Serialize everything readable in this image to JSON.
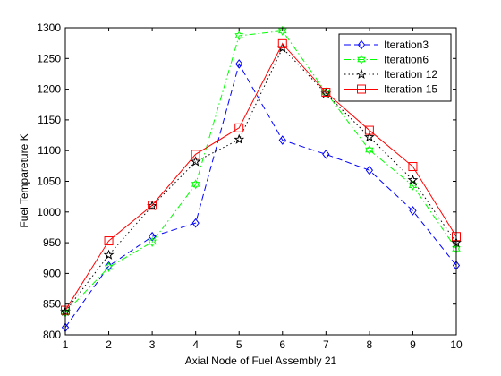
{
  "chart_data": {
    "type": "line",
    "title": "",
    "xlabel": "Axial Node of Fuel Assembly 21",
    "ylabel": "Fuel Tempareture K",
    "xlim": [
      1,
      10
    ],
    "ylim": [
      800,
      1300
    ],
    "x": [
      1,
      2,
      3,
      4,
      5,
      6,
      7,
      8,
      9,
      10
    ],
    "xticks": [
      "1",
      "2",
      "3",
      "4",
      "5",
      "6",
      "7",
      "8",
      "9",
      "10"
    ],
    "yticks": [
      "800",
      "850",
      "900",
      "950",
      "1000",
      "1050",
      "1100",
      "1150",
      "1200",
      "1250",
      "1300"
    ],
    "grid": false,
    "legend_position": "top-right",
    "series": [
      {
        "name": "Iteration3",
        "color": "#0000ff",
        "dash": "dashed",
        "marker": "diamond",
        "values": [
          812,
          912,
          960,
          982,
          1241,
          1117,
          1094,
          1068,
          1002,
          913
        ]
      },
      {
        "name": "Iteration6",
        "color": "#00ff00",
        "dash": "dashdot",
        "marker": "hexagram",
        "values": [
          836,
          910,
          951,
          1045,
          1287,
          1295,
          1195,
          1101,
          1043,
          940
        ]
      },
      {
        "name": "Iteration 12",
        "color": "#000000",
        "dash": "dotted",
        "marker": "pentagram",
        "values": [
          838,
          930,
          1010,
          1082,
          1118,
          1267,
          1193,
          1122,
          1052,
          950
        ]
      },
      {
        "name": "Iteration 15",
        "color": "#ff0000",
        "dash": "solid",
        "marker": "square",
        "values": [
          840,
          953,
          1011,
          1094,
          1137,
          1274,
          1195,
          1133,
          1074,
          960
        ]
      }
    ]
  }
}
